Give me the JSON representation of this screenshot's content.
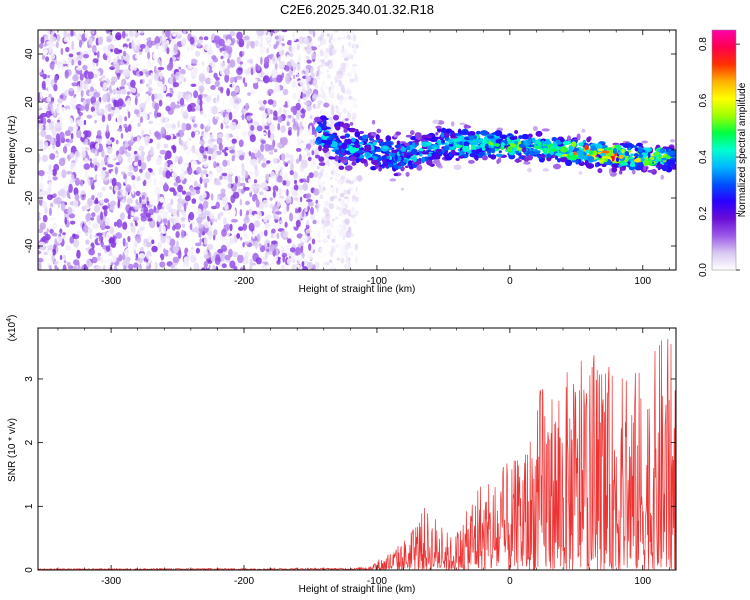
{
  "figure": {
    "title": "C2E6.2025.340.01.32.R18"
  },
  "colorbar": {
    "label": "Normalized spectral amplitude",
    "ticks": [
      "0.0",
      "0.2",
      "0.4",
      "0.6",
      "0.8"
    ],
    "colormap": [
      "#ffffff",
      "#d9c8f2",
      "#9b59e8",
      "#6a0dd6",
      "#2a00ff",
      "#0050ff",
      "#00b7ff",
      "#00ffd0",
      "#00ff40",
      "#a0ff00",
      "#ffff00",
      "#ffb000",
      "#ff3000",
      "#ff0050",
      "#ff00aa"
    ]
  },
  "chart_data": [
    {
      "type": "heatmap",
      "title": "C2E6.2025.340.01.32.R18",
      "xlabel": "Height of straight line (km)",
      "ylabel": "Frequency (Hz)",
      "xlim": [
        -355,
        125
      ],
      "ylim": [
        -50,
        50
      ],
      "x_ticks": [
        -300,
        -200,
        -100,
        0,
        100
      ],
      "y_ticks": [
        -40,
        -20,
        0,
        20,
        40
      ],
      "zlim": [
        0,
        0.85
      ],
      "description_regions": [
        {
          "x_range": [
            -355,
            -145
          ],
          "y_range": [
            -50,
            50
          ],
          "amplitude": 0.1,
          "pattern": "broadband noise"
        },
        {
          "x_range": [
            -145,
            -115
          ],
          "y_range": [
            -50,
            50
          ],
          "amplitude": 0.03,
          "pattern": "faint broadband noise"
        },
        {
          "x_range": [
            -145,
            125
          ],
          "y_center": [
            7,
            0,
            0,
            -3,
            3,
            2,
            2,
            0,
            -2,
            -3,
            -3
          ],
          "y_center_x": [
            -145,
            -120,
            -100,
            -80,
            -50,
            -20,
            0,
            40,
            70,
            100,
            125
          ],
          "amplitude_peak": 0.85,
          "pattern": "narrowband signal near 0 Hz"
        }
      ],
      "signal_peak": {
        "x": 70,
        "y": 0,
        "amplitude": 0.85
      }
    },
    {
      "type": "line",
      "title": "",
      "xlabel": "Height of straight line (km)",
      "ylabel": "SNR (10 * v/v)",
      "y_multiplier": "(x10^4)",
      "xlim": [
        -355,
        125
      ],
      "ylim": [
        0,
        3.8
      ],
      "x_ticks": [
        -300,
        -200,
        -100,
        0,
        100
      ],
      "y_ticks": [
        0,
        1,
        2,
        3
      ],
      "color": "#ee3333",
      "envelope": {
        "x": [
          -355,
          -115,
          -105,
          -95,
          -85,
          -75,
          -65,
          -55,
          -45,
          -35,
          -25,
          -15,
          -5,
          5,
          15,
          25,
          35,
          45,
          55,
          65,
          75,
          85,
          95,
          105,
          115,
          125
        ],
        "max": [
          0.02,
          0.03,
          0.1,
          0.22,
          0.38,
          0.6,
          1.0,
          0.85,
          0.55,
          0.75,
          1.5,
          1.35,
          1.65,
          1.75,
          2.2,
          3.1,
          2.9,
          3.2,
          3.3,
          3.4,
          3.2,
          3.1,
          3.2,
          3.2,
          3.8,
          3.5
        ]
      }
    }
  ]
}
